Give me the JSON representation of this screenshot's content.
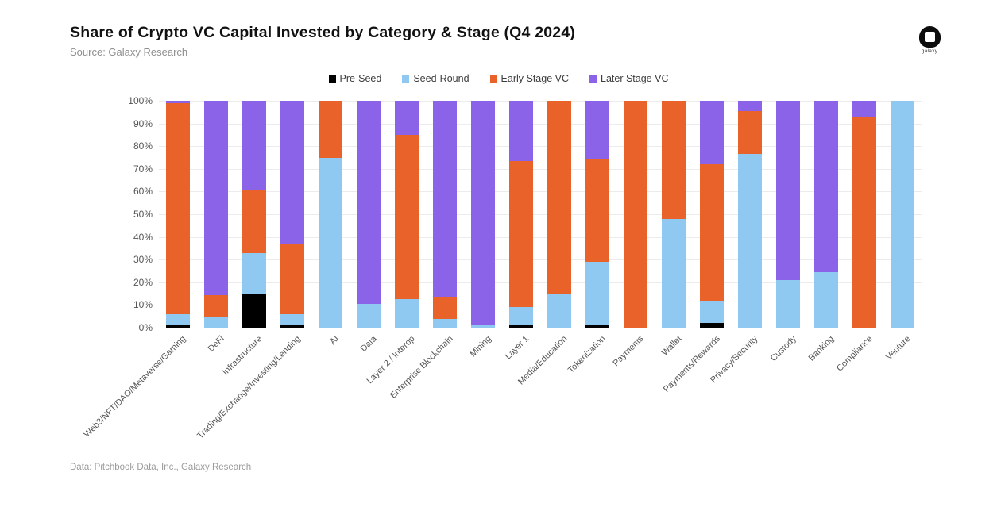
{
  "page": {
    "title": "Share of Crypto VC Capital Invested by Category & Stage (Q4 2024)",
    "subtitle": "Source: Galaxy Research",
    "footnote": "Data: Pitchbook Data, Inc., Galaxy Research",
    "logo_text": "galaxy"
  },
  "colors": {
    "pre_seed": "#000000",
    "seed_round": "#8FC9F1",
    "early_stage": "#E8622A",
    "later_stage": "#8A63E8",
    "grid": "#ECECEC",
    "axis_text": "#555555"
  },
  "chart_data": {
    "type": "bar",
    "stacked": true,
    "unit": "percent",
    "title": "Share of Crypto VC Capital Invested by Category & Stage (Q4 2024)",
    "xlabel": "",
    "ylabel": "",
    "ylim": [
      0,
      100
    ],
    "grid": true,
    "legend_position": "top",
    "yticks": [
      "0%",
      "10%",
      "20%",
      "30%",
      "40%",
      "50%",
      "60%",
      "70%",
      "80%",
      "90%",
      "100%"
    ],
    "categories": [
      "Web3/NFT/DAO/Metaverse/Gaming",
      "DeFi",
      "Infrastructure",
      "Trading/Exchange/Investing/Lending",
      "AI",
      "Data",
      "Layer 2 / Interop",
      "Enterprise Blockchain",
      "Mining",
      "Layer 1",
      "Media/Education",
      "Tokenization",
      "Payments",
      "Wallet",
      "Payments/Rewards",
      "Privacy/Security",
      "Custody",
      "Banking",
      "Compliance",
      "Venture"
    ],
    "series": [
      {
        "name": "Pre-Seed",
        "color": "#000000",
        "values": [
          1,
          0,
          15,
          1,
          0,
          0,
          0,
          0,
          0,
          1,
          0,
          1,
          0,
          0,
          2,
          0,
          0,
          0,
          0,
          0
        ]
      },
      {
        "name": "Seed-Round",
        "color": "#8FC9F1",
        "values": [
          5,
          4.5,
          18,
          5,
          75,
          10.5,
          12.5,
          4,
          1.5,
          8,
          15,
          28,
          0,
          48,
          10,
          76.5,
          21,
          24.5,
          0,
          100
        ]
      },
      {
        "name": "Early Stage VC",
        "color": "#E8622A",
        "values": [
          93,
          10,
          28,
          31,
          25,
          0,
          72.5,
          9.5,
          0,
          64.5,
          85,
          45,
          100,
          52,
          60,
          19,
          0,
          0,
          93,
          0
        ]
      },
      {
        "name": "Later Stage VC",
        "color": "#8A63E8",
        "values": [
          1,
          85.5,
          39,
          63,
          0,
          89.5,
          15,
          86.5,
          98.5,
          26.5,
          0,
          26,
          0,
          0,
          28,
          4.5,
          79,
          75.5,
          7,
          0
        ]
      }
    ]
  }
}
